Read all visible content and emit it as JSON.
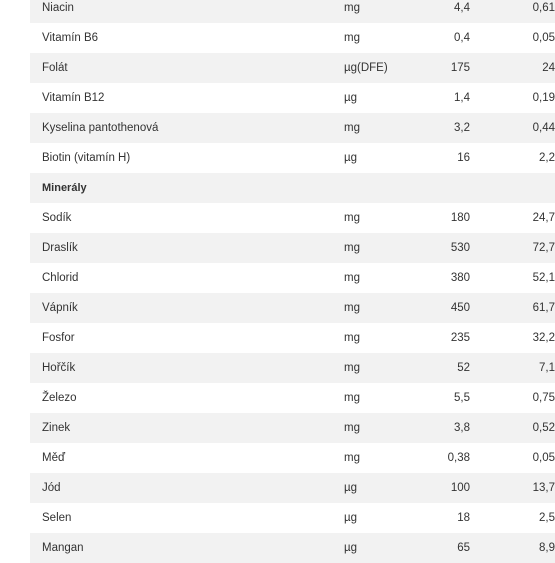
{
  "table": {
    "rows": [
      {
        "name": "Niacin",
        "unit": "mg",
        "amount": "4,4",
        "pct": "0,61"
      },
      {
        "name": "Vitamín B6",
        "unit": "mg",
        "amount": "0,4",
        "pct": "0,05"
      },
      {
        "name": "Folát",
        "unit": "µg(DFE)",
        "amount": "175",
        "pct": "24"
      },
      {
        "name": "Vitamín B12",
        "unit": "µg",
        "amount": "1,4",
        "pct": "0,19"
      },
      {
        "name": "Kyselina pantothenová",
        "unit": "mg",
        "amount": "3,2",
        "pct": "0,44"
      },
      {
        "name": "Biotin (vitamín H)",
        "unit": "µg",
        "amount": "16",
        "pct": "2,2"
      },
      {
        "name": "Minerály",
        "unit": "",
        "amount": "",
        "pct": "",
        "section": true
      },
      {
        "name": "Sodík",
        "unit": "mg",
        "amount": "180",
        "pct": "24,7"
      },
      {
        "name": "Draslík",
        "unit": "mg",
        "amount": "530",
        "pct": "72,7"
      },
      {
        "name": "Chlorid",
        "unit": "mg",
        "amount": "380",
        "pct": "52,1"
      },
      {
        "name": "Vápník",
        "unit": "mg",
        "amount": "450",
        "pct": "61,7"
      },
      {
        "name": "Fosfor",
        "unit": "mg",
        "amount": "235",
        "pct": "32,2"
      },
      {
        "name": "Hořčík",
        "unit": "mg",
        "amount": "52",
        "pct": "7,1"
      },
      {
        "name": "Železo",
        "unit": "mg",
        "amount": "5,5",
        "pct": "0,75"
      },
      {
        "name": "Zinek",
        "unit": "mg",
        "amount": "3,8",
        "pct": "0,52"
      },
      {
        "name": "Měď",
        "unit": "mg",
        "amount": "0,38",
        "pct": "0,05"
      },
      {
        "name": "Jód",
        "unit": "µg",
        "amount": "100",
        "pct": "13,7"
      },
      {
        "name": "Selen",
        "unit": "µg",
        "amount": "18",
        "pct": "2,5"
      },
      {
        "name": "Mangan",
        "unit": "µg",
        "amount": "65",
        "pct": "8,9"
      }
    ]
  },
  "colors": {
    "row_alt": "#f2f2f2",
    "row_plain": "#ffffff",
    "text": "#333333"
  }
}
